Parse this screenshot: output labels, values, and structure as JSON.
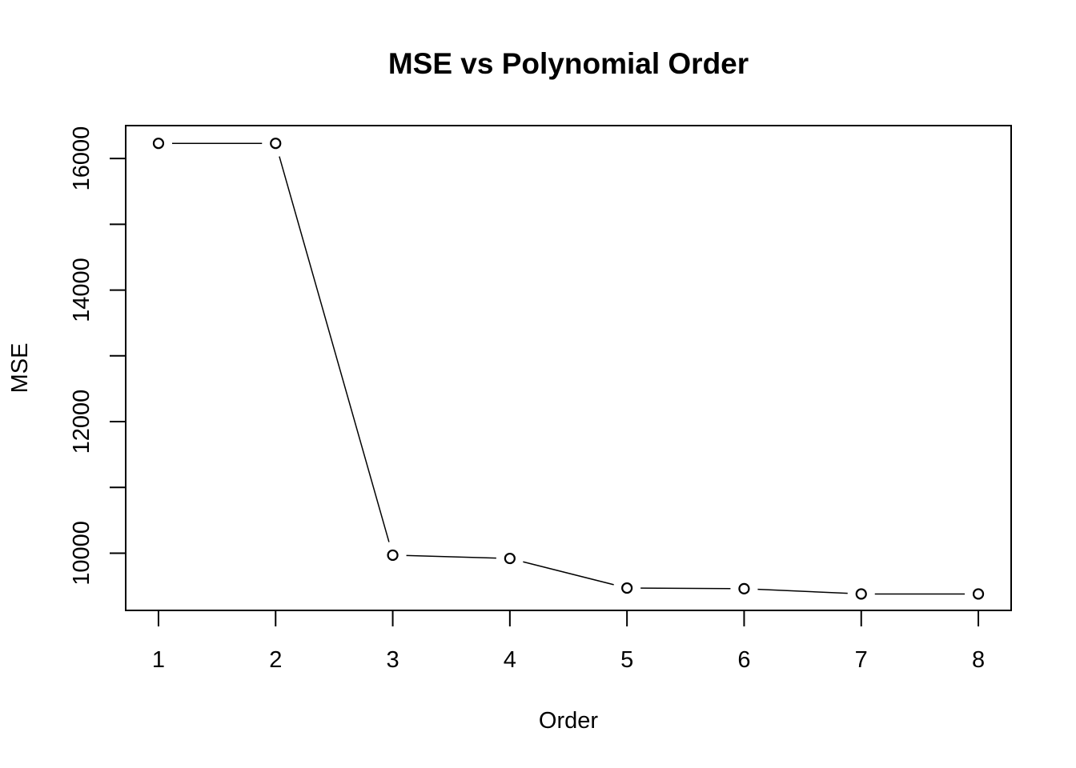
{
  "chart_data": {
    "type": "line",
    "title": "MSE vs Polynomial Order",
    "xlabel": "Order",
    "ylabel": "MSE",
    "x": [
      1,
      2,
      3,
      4,
      5,
      6,
      7,
      8
    ],
    "series": [
      {
        "values": [
          16230,
          16230,
          9970,
          9920,
          9470,
          9460,
          9380,
          9380
        ]
      }
    ],
    "xticks": [
      "1",
      "2",
      "3",
      "4",
      "5",
      "6",
      "7",
      "8"
    ],
    "yticks": [
      10000,
      11000,
      12000,
      13000,
      14000,
      15000,
      16000
    ],
    "ytick_labels": [
      "10000",
      "12000",
      "14000",
      "16000"
    ],
    "xlim": [
      0.72,
      8.28
    ],
    "ylim": [
      9130,
      16500
    ],
    "grid": false,
    "legend": "none",
    "marker": "open-circle",
    "line_color": "#000000"
  }
}
